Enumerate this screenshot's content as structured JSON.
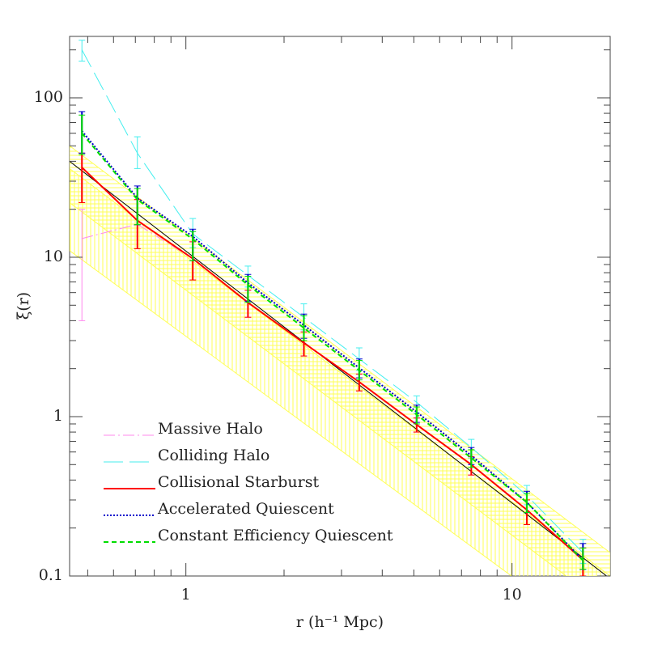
{
  "chart_data": {
    "type": "line",
    "x_label": "r (h⁻¹ Mpc)",
    "y_label": "ξ(r)",
    "log_x": true,
    "log_y": true,
    "minor_ticks": true,
    "legend": "lower left",
    "xlim": [
      0.44,
      20
    ],
    "ylim": [
      0.1,
      243
    ],
    "xticks": [
      1,
      10
    ],
    "yticks": [
      0.1,
      1,
      10,
      100
    ],
    "x": [
      0.48,
      0.71,
      1.05,
      1.55,
      2.3,
      3.4,
      5.1,
      7.5,
      11.1,
      16.5
    ],
    "bands": [
      {
        "color": "#ffff55",
        "hatch": "horizontal",
        "x": [
          0.44,
          20
        ],
        "upper": [
          50,
          0.14
        ],
        "lower": [
          22,
          0.062
        ]
      },
      {
        "color": "#ffff55",
        "hatch": "vertical",
        "x": [
          0.44,
          20
        ],
        "upper": [
          36,
          0.1
        ],
        "lower": [
          11,
          0.035
        ]
      }
    ],
    "reference_line": {
      "color": "#000000",
      "x": [
        0.44,
        19.5
      ],
      "values": [
        40,
        0.1
      ]
    },
    "series": [
      {
        "name": "Massive Halo",
        "color": "#ff88ee",
        "dash": "14 4 2 4",
        "width": 1,
        "values": [
          13.1,
          16.1,
          9.8,
          5.2,
          2.9,
          1.65,
          0.89,
          0.5,
          0.26,
          0.126
        ],
        "lower": [
          4,
          11.3,
          7.2,
          4.2,
          2.4,
          1.45,
          0.8,
          0.43,
          0.21,
          0.1
        ],
        "upper": [
          20,
          23,
          12.5,
          6.2,
          3.4,
          1.85,
          0.98,
          0.56,
          0.3,
          0.15
        ]
      },
      {
        "name": "Colliding Halo",
        "color": "#44eeee",
        "dash": "24 8",
        "width": 1,
        "values": [
          200,
          45,
          14,
          7.7,
          4.2,
          2.3,
          1.23,
          0.64,
          0.32,
          0.14
        ],
        "lower": [
          170,
          36,
          11.5,
          6.5,
          3.5,
          1.95,
          1.05,
          0.55,
          0.28,
          0.12
        ],
        "upper": [
          230,
          57,
          17.5,
          8.8,
          5.1,
          2.7,
          1.35,
          0.72,
          0.37,
          0.17
        ]
      },
      {
        "name": "Collisional Starburst",
        "color": "#ff0000",
        "dash": "none",
        "width": 2,
        "values": [
          36.6,
          17,
          9.8,
          5.2,
          2.9,
          1.65,
          0.89,
          0.5,
          0.26,
          0.126
        ],
        "lower": [
          22,
          11.3,
          7.2,
          4.2,
          2.4,
          1.45,
          0.8,
          0.43,
          0.21,
          0.1
        ],
        "upper": [
          45,
          23,
          12.5,
          6.2,
          3.4,
          1.85,
          0.98,
          0.56,
          0.3,
          0.15
        ]
      },
      {
        "name": "Accelerated Quiescent",
        "color": "#0000cc",
        "dash": "2 2",
        "width": 2,
        "values": [
          62,
          23.5,
          13.5,
          6.9,
          3.75,
          2.02,
          1.07,
          0.57,
          0.29,
          0.126
        ],
        "lower": [
          45,
          16,
          9.5,
          5.3,
          3.1,
          1.75,
          0.92,
          0.5,
          0.25,
          0.11
        ],
        "upper": [
          82,
          28,
          15,
          7.8,
          4.4,
          2.3,
          1.18,
          0.64,
          0.34,
          0.16
        ]
      },
      {
        "name": "Constant Efficiency Quiescent",
        "color": "#00dd00",
        "dash": "6 4",
        "width": 2,
        "values": [
          60,
          23,
          13,
          6.7,
          3.6,
          1.95,
          1.03,
          0.55,
          0.29,
          0.125
        ],
        "lower": [
          44,
          16,
          9.5,
          5.2,
          3.0,
          1.7,
          0.9,
          0.48,
          0.25,
          0.11
        ],
        "upper": [
          78,
          27,
          14.5,
          7.6,
          4.3,
          2.25,
          1.15,
          0.62,
          0.33,
          0.15
        ]
      }
    ]
  }
}
